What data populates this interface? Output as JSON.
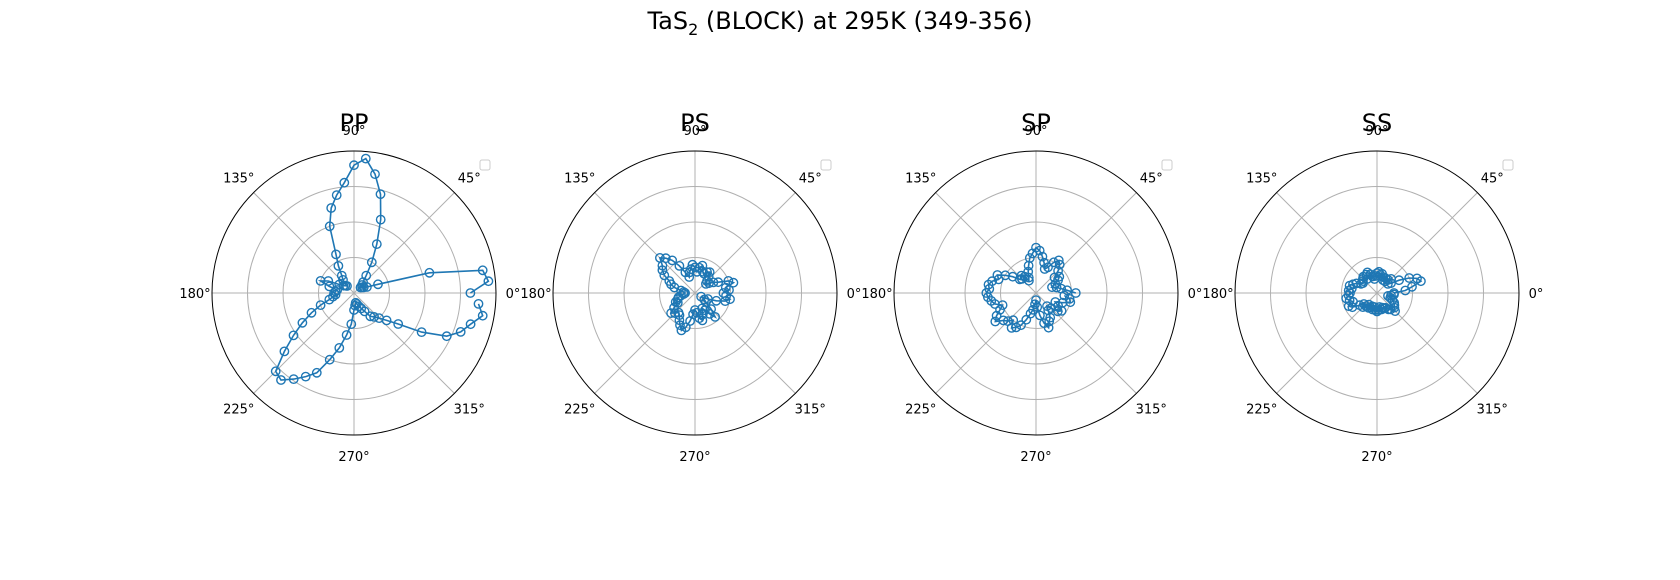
{
  "figure": {
    "title_main": "TaS",
    "title_sub": "2",
    "title_rest": " (BLOCK) at 295K (349-356)"
  },
  "colors": {
    "series": "#1f77b4",
    "grid": "#b0b0b0",
    "axis": "#000000"
  },
  "chart_data": [
    {
      "type": "scatter",
      "polar": true,
      "title": "PP",
      "rlim": [
        0,
        1
      ],
      "angle_ticks": [
        "0°",
        "45°",
        "90°",
        "135°",
        "180°",
        "225°",
        "270°",
        "315°"
      ],
      "grid": true,
      "legend": "top-right (empty)",
      "points": [
        [
          0,
          0.82
        ],
        [
          5,
          0.95
        ],
        [
          10,
          0.92
        ],
        [
          15,
          0.55
        ],
        [
          20,
          0.18
        ],
        [
          25,
          0.1
        ],
        [
          30,
          0.08
        ],
        [
          35,
          0.07
        ],
        [
          40,
          0.06
        ],
        [
          45,
          0.08
        ],
        [
          50,
          0.1
        ],
        [
          55,
          0.15
        ],
        [
          60,
          0.25
        ],
        [
          65,
          0.38
        ],
        [
          70,
          0.55
        ],
        [
          75,
          0.72
        ],
        [
          80,
          0.85
        ],
        [
          85,
          0.95
        ],
        [
          90,
          0.9
        ],
        [
          95,
          0.78
        ],
        [
          100,
          0.7
        ],
        [
          105,
          0.62
        ],
        [
          110,
          0.5
        ],
        [
          115,
          0.3
        ],
        [
          120,
          0.22
        ],
        [
          125,
          0.15
        ],
        [
          130,
          0.12
        ],
        [
          135,
          0.07
        ],
        [
          140,
          0.08
        ],
        [
          145,
          0.09
        ],
        [
          150,
          0.12
        ],
        [
          155,
          0.2
        ],
        [
          160,
          0.25
        ],
        [
          165,
          0.18
        ],
        [
          170,
          0.12
        ],
        [
          175,
          0.13
        ],
        [
          180,
          0.14
        ],
        [
          185,
          0.13
        ],
        [
          190,
          0.15
        ],
        [
          195,
          0.18
        ],
        [
          200,
          0.25
        ],
        [
          205,
          0.33
        ],
        [
          210,
          0.42
        ],
        [
          215,
          0.52
        ],
        [
          220,
          0.64
        ],
        [
          225,
          0.78
        ],
        [
          230,
          0.8
        ],
        [
          235,
          0.74
        ],
        [
          240,
          0.68
        ],
        [
          245,
          0.62
        ],
        [
          250,
          0.5
        ],
        [
          255,
          0.4
        ],
        [
          260,
          0.3
        ],
        [
          265,
          0.22
        ],
        [
          270,
          0.12
        ],
        [
          275,
          0.09
        ],
        [
          280,
          0.07
        ],
        [
          285,
          0.08
        ],
        [
          290,
          0.1
        ],
        [
          295,
          0.12
        ],
        [
          300,
          0.15
        ],
        [
          305,
          0.2
        ],
        [
          310,
          0.22
        ],
        [
          315,
          0.25
        ],
        [
          320,
          0.3
        ],
        [
          325,
          0.38
        ],
        [
          330,
          0.55
        ],
        [
          335,
          0.72
        ],
        [
          340,
          0.8
        ],
        [
          345,
          0.85
        ],
        [
          350,
          0.92
        ],
        [
          355,
          0.88
        ]
      ]
    },
    {
      "type": "scatter",
      "polar": true,
      "title": "PS",
      "rlim": [
        0,
        1
      ],
      "angle_ticks": [
        "0°",
        "45°",
        "90°",
        "135°",
        "180°",
        "225°",
        "270°",
        "315°"
      ],
      "grid": true,
      "legend": "top-right (empty)",
      "points": [
        [
          0,
          0.2
        ],
        [
          5,
          0.24
        ],
        [
          10,
          0.22
        ],
        [
          15,
          0.28
        ],
        [
          20,
          0.25
        ],
        [
          25,
          0.18
        ],
        [
          30,
          0.15
        ],
        [
          35,
          0.12
        ],
        [
          40,
          0.1
        ],
        [
          45,
          0.12
        ],
        [
          50,
          0.15
        ],
        [
          55,
          0.18
        ],
        [
          60,
          0.17
        ],
        [
          65,
          0.15
        ],
        [
          70,
          0.16
        ],
        [
          75,
          0.2
        ],
        [
          80,
          0.18
        ],
        [
          85,
          0.15
        ],
        [
          90,
          0.18
        ],
        [
          95,
          0.2
        ],
        [
          100,
          0.17
        ],
        [
          105,
          0.15
        ],
        [
          110,
          0.12
        ],
        [
          115,
          0.16
        ],
        [
          120,
          0.22
        ],
        [
          125,
          0.28
        ],
        [
          130,
          0.32
        ],
        [
          135,
          0.35
        ],
        [
          140,
          0.3
        ],
        [
          145,
          0.28
        ],
        [
          150,
          0.25
        ],
        [
          155,
          0.2
        ],
        [
          160,
          0.18
        ],
        [
          165,
          0.15
        ],
        [
          170,
          0.1
        ],
        [
          175,
          0.08
        ],
        [
          180,
          0.07
        ],
        [
          185,
          0.08
        ],
        [
          190,
          0.1
        ],
        [
          195,
          0.12
        ],
        [
          200,
          0.13
        ],
        [
          205,
          0.15
        ],
        [
          210,
          0.14
        ],
        [
          215,
          0.18
        ],
        [
          220,
          0.22
        ],
        [
          225,
          0.2
        ],
        [
          230,
          0.18
        ],
        [
          235,
          0.19
        ],
        [
          240,
          0.22
        ],
        [
          245,
          0.25
        ],
        [
          250,
          0.28
        ],
        [
          255,
          0.25
        ],
        [
          260,
          0.2
        ],
        [
          265,
          0.15
        ],
        [
          270,
          0.12
        ],
        [
          275,
          0.14
        ],
        [
          280,
          0.18
        ],
        [
          285,
          0.2
        ],
        [
          290,
          0.16
        ],
        [
          295,
          0.12
        ],
        [
          300,
          0.14
        ],
        [
          305,
          0.18
        ],
        [
          310,
          0.22
        ],
        [
          315,
          0.16
        ],
        [
          320,
          0.1
        ],
        [
          325,
          0.08
        ],
        [
          330,
          0.05
        ],
        [
          335,
          0.1
        ],
        [
          340,
          0.16
        ],
        [
          345,
          0.22
        ],
        [
          350,
          0.25
        ],
        [
          355,
          0.22
        ]
      ]
    },
    {
      "type": "scatter",
      "polar": true,
      "title": "SP",
      "rlim": [
        0,
        1
      ],
      "angle_ticks": [
        "0°",
        "45°",
        "90°",
        "135°",
        "180°",
        "225°",
        "270°",
        "315°"
      ],
      "grid": true,
      "legend": "top-right (empty)",
      "points": [
        [
          0,
          0.28
        ],
        [
          5,
          0.22
        ],
        [
          10,
          0.18
        ],
        [
          15,
          0.15
        ],
        [
          20,
          0.12
        ],
        [
          25,
          0.15
        ],
        [
          30,
          0.18
        ],
        [
          35,
          0.2
        ],
        [
          40,
          0.17
        ],
        [
          45,
          0.22
        ],
        [
          50,
          0.26
        ],
        [
          55,
          0.28
        ],
        [
          60,
          0.25
        ],
        [
          65,
          0.2
        ],
        [
          70,
          0.18
        ],
        [
          75,
          0.22
        ],
        [
          80,
          0.26
        ],
        [
          85,
          0.3
        ],
        [
          90,
          0.32
        ],
        [
          95,
          0.28
        ],
        [
          100,
          0.25
        ],
        [
          105,
          0.2
        ],
        [
          110,
          0.16
        ],
        [
          115,
          0.12
        ],
        [
          120,
          0.1
        ],
        [
          125,
          0.14
        ],
        [
          130,
          0.16
        ],
        [
          135,
          0.14
        ],
        [
          140,
          0.15
        ],
        [
          145,
          0.2
        ],
        [
          150,
          0.25
        ],
        [
          155,
          0.3
        ],
        [
          160,
          0.28
        ],
        [
          165,
          0.32
        ],
        [
          170,
          0.34
        ],
        [
          175,
          0.33
        ],
        [
          180,
          0.35
        ],
        [
          185,
          0.34
        ],
        [
          190,
          0.32
        ],
        [
          195,
          0.3
        ],
        [
          200,
          0.25
        ],
        [
          205,
          0.28
        ],
        [
          210,
          0.32
        ],
        [
          215,
          0.35
        ],
        [
          220,
          0.3
        ],
        [
          225,
          0.28
        ],
        [
          230,
          0.25
        ],
        [
          235,
          0.3
        ],
        [
          240,
          0.28
        ],
        [
          245,
          0.25
        ],
        [
          250,
          0.2
        ],
        [
          255,
          0.15
        ],
        [
          260,
          0.12
        ],
        [
          265,
          0.08
        ],
        [
          270,
          0.05
        ],
        [
          275,
          0.1
        ],
        [
          280,
          0.16
        ],
        [
          285,
          0.22
        ],
        [
          290,
          0.26
        ],
        [
          295,
          0.22
        ],
        [
          300,
          0.2
        ],
        [
          305,
          0.15
        ],
        [
          310,
          0.12
        ],
        [
          315,
          0.15
        ],
        [
          320,
          0.2
        ],
        [
          325,
          0.22
        ],
        [
          330,
          0.18
        ],
        [
          335,
          0.15
        ],
        [
          340,
          0.2
        ],
        [
          345,
          0.25
        ],
        [
          350,
          0.24
        ],
        [
          355,
          0.2
        ]
      ]
    },
    {
      "type": "scatter",
      "polar": true,
      "title": "SS",
      "rlim": [
        0,
        1
      ],
      "angle_ticks": [
        "0°",
        "45°",
        "90°",
        "135°",
        "180°",
        "225°",
        "270°",
        "315°"
      ],
      "grid": true,
      "legend": "top-right (empty)",
      "points": [
        [
          0,
          0.12
        ],
        [
          5,
          0.2
        ],
        [
          10,
          0.25
        ],
        [
          15,
          0.32
        ],
        [
          20,
          0.3
        ],
        [
          25,
          0.25
        ],
        [
          30,
          0.18
        ],
        [
          35,
          0.12
        ],
        [
          40,
          0.1
        ],
        [
          45,
          0.14
        ],
        [
          50,
          0.12
        ],
        [
          55,
          0.1
        ],
        [
          60,
          0.12
        ],
        [
          65,
          0.1
        ],
        [
          70,
          0.12
        ],
        [
          75,
          0.14
        ],
        [
          80,
          0.13
        ],
        [
          85,
          0.15
        ],
        [
          90,
          0.14
        ],
        [
          95,
          0.12
        ],
        [
          100,
          0.1
        ],
        [
          105,
          0.12
        ],
        [
          110,
          0.14
        ],
        [
          115,
          0.16
        ],
        [
          120,
          0.15
        ],
        [
          125,
          0.12
        ],
        [
          130,
          0.15
        ],
        [
          135,
          0.14
        ],
        [
          140,
          0.13
        ],
        [
          145,
          0.12
        ],
        [
          150,
          0.13
        ],
        [
          155,
          0.16
        ],
        [
          160,
          0.18
        ],
        [
          165,
          0.2
        ],
        [
          170,
          0.18
        ],
        [
          175,
          0.2
        ],
        [
          180,
          0.19
        ],
        [
          185,
          0.2
        ],
        [
          190,
          0.22
        ],
        [
          195,
          0.2
        ],
        [
          200,
          0.18
        ],
        [
          205,
          0.22
        ],
        [
          210,
          0.2
        ],
        [
          215,
          0.15
        ],
        [
          220,
          0.12
        ],
        [
          225,
          0.14
        ],
        [
          230,
          0.12
        ],
        [
          235,
          0.1
        ],
        [
          240,
          0.12
        ],
        [
          245,
          0.11
        ],
        [
          250,
          0.1
        ],
        [
          255,
          0.12
        ],
        [
          260,
          0.1
        ],
        [
          265,
          0.12
        ],
        [
          270,
          0.13
        ],
        [
          275,
          0.12
        ],
        [
          280,
          0.1
        ],
        [
          285,
          0.12
        ],
        [
          290,
          0.11
        ],
        [
          295,
          0.12
        ],
        [
          300,
          0.12
        ],
        [
          305,
          0.14
        ],
        [
          310,
          0.15
        ],
        [
          315,
          0.18
        ],
        [
          320,
          0.16
        ],
        [
          325,
          0.15
        ],
        [
          330,
          0.14
        ],
        [
          335,
          0.12
        ],
        [
          340,
          0.1
        ],
        [
          345,
          0.08
        ],
        [
          350,
          0.1
        ],
        [
          355,
          0.12
        ]
      ]
    }
  ]
}
